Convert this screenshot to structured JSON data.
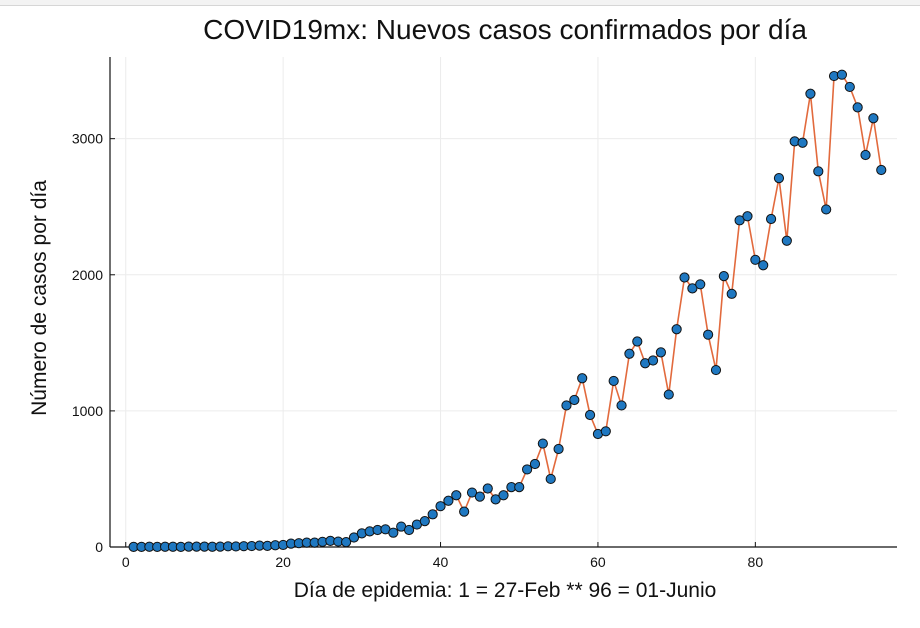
{
  "chart_data": {
    "type": "scatter",
    "title": "COVID19mx: Nuevos casos confirmados por día",
    "xlabel": "Día de epidemia: 1 = 27-Feb ** 96 = 01-Junio",
    "ylabel": "Número de casos por día",
    "xlim": [
      -2,
      98
    ],
    "ylim": [
      0,
      3600
    ],
    "xticks": [
      0,
      20,
      40,
      60,
      80
    ],
    "yticks": [
      0,
      1000,
      2000,
      3000
    ],
    "xtick_labels": [
      "0",
      "20",
      "40",
      "60",
      "80"
    ],
    "ytick_labels": [
      "0",
      "1000",
      "2000",
      "3000"
    ],
    "grid": true,
    "legend": "none",
    "colors": {
      "marker": "#1f78c1",
      "marker_edge": "#111111",
      "line": "#e26a3d",
      "grid": "#ececec"
    },
    "series": [
      {
        "x": [
          1,
          2,
          3,
          4,
          5,
          6,
          7,
          8,
          9,
          10,
          11,
          12,
          13,
          14,
          15,
          16,
          17,
          18,
          19,
          20,
          21,
          22,
          23,
          24,
          25,
          26,
          27,
          28,
          29,
          30,
          31,
          32,
          33,
          34,
          35,
          36,
          37,
          38,
          39,
          40,
          41,
          42,
          43,
          44,
          45,
          46,
          47,
          48,
          49,
          50,
          51,
          52,
          53,
          54,
          55,
          56,
          57,
          58,
          59,
          60,
          61,
          62,
          63,
          64,
          65,
          66,
          67,
          68,
          69,
          70,
          71,
          72,
          73,
          74,
          75,
          76,
          77,
          78,
          79,
          80,
          81,
          82,
          83,
          84,
          85,
          86,
          87,
          88,
          89,
          90,
          91,
          92,
          93,
          94,
          95,
          96
        ],
        "y": [
          1,
          1,
          2,
          1,
          2,
          2,
          1,
          3,
          3,
          3,
          2,
          3,
          5,
          4,
          6,
          7,
          10,
          8,
          13,
          15,
          25,
          28,
          32,
          32,
          38,
          45,
          40,
          36,
          70,
          100,
          115,
          125,
          130,
          105,
          150,
          125,
          165,
          190,
          240,
          300,
          340,
          380,
          260,
          400,
          370,
          430,
          350,
          380,
          440,
          440,
          570,
          610,
          760,
          500,
          720,
          1040,
          1080,
          1240,
          970,
          830,
          850,
          1220,
          1040,
          1420,
          1510,
          1350,
          1370,
          1430,
          1120,
          1600,
          1980,
          1900,
          1930,
          1560,
          1300,
          1990,
          1860,
          2400,
          2430,
          2110,
          2070,
          2410,
          2710,
          2250,
          2980,
          2970,
          3330,
          2760,
          2480,
          3460,
          3470,
          3380,
          3230,
          2880,
          3150,
          2770
        ]
      }
    ]
  }
}
